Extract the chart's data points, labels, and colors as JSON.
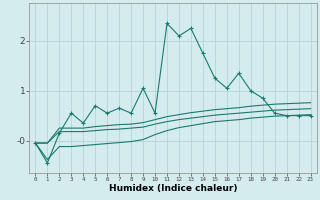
{
  "xlabel": "Humidex (Indice chaleur)",
  "bg_color": "#d4ecee",
  "grid_color": "#b8d4d8",
  "line_color": "#1a7a6e",
  "x_data": [
    0,
    1,
    2,
    3,
    4,
    5,
    6,
    7,
    8,
    9,
    10,
    11,
    12,
    13,
    14,
    15,
    16,
    17,
    18,
    19,
    20,
    21,
    22,
    23
  ],
  "main_y": [
    -0.05,
    -0.45,
    0.15,
    0.55,
    0.35,
    0.7,
    0.55,
    0.65,
    0.55,
    1.05,
    0.55,
    2.35,
    2.1,
    2.25,
    1.75,
    1.25,
    1.05,
    1.35,
    1.0,
    0.85,
    0.55,
    0.5,
    0.5,
    0.5
  ],
  "line2_y": [
    -0.05,
    -0.05,
    0.25,
    0.25,
    0.25,
    0.28,
    0.3,
    0.32,
    0.33,
    0.36,
    0.42,
    0.48,
    0.52,
    0.56,
    0.59,
    0.62,
    0.64,
    0.66,
    0.69,
    0.71,
    0.73,
    0.74,
    0.75,
    0.76
  ],
  "line3_y": [
    -0.05,
    -0.05,
    0.18,
    0.18,
    0.18,
    0.2,
    0.22,
    0.23,
    0.25,
    0.27,
    0.33,
    0.38,
    0.42,
    0.45,
    0.48,
    0.51,
    0.53,
    0.55,
    0.57,
    0.59,
    0.61,
    0.62,
    0.63,
    0.64
  ],
  "line4_y": [
    -0.05,
    -0.38,
    -0.12,
    -0.12,
    -0.1,
    -0.08,
    -0.06,
    -0.04,
    -0.02,
    0.02,
    0.12,
    0.2,
    0.26,
    0.3,
    0.34,
    0.38,
    0.4,
    0.42,
    0.45,
    0.47,
    0.49,
    0.5,
    0.51,
    0.52
  ],
  "ylim": [
    -0.65,
    2.75
  ],
  "yticks": [
    0,
    1,
    2
  ],
  "ytick_labels": [
    "-0",
    "1",
    "2"
  ],
  "xticks": [
    0,
    1,
    2,
    3,
    4,
    5,
    6,
    7,
    8,
    9,
    10,
    11,
    12,
    13,
    14,
    15,
    16,
    17,
    18,
    19,
    20,
    21,
    22,
    23
  ]
}
